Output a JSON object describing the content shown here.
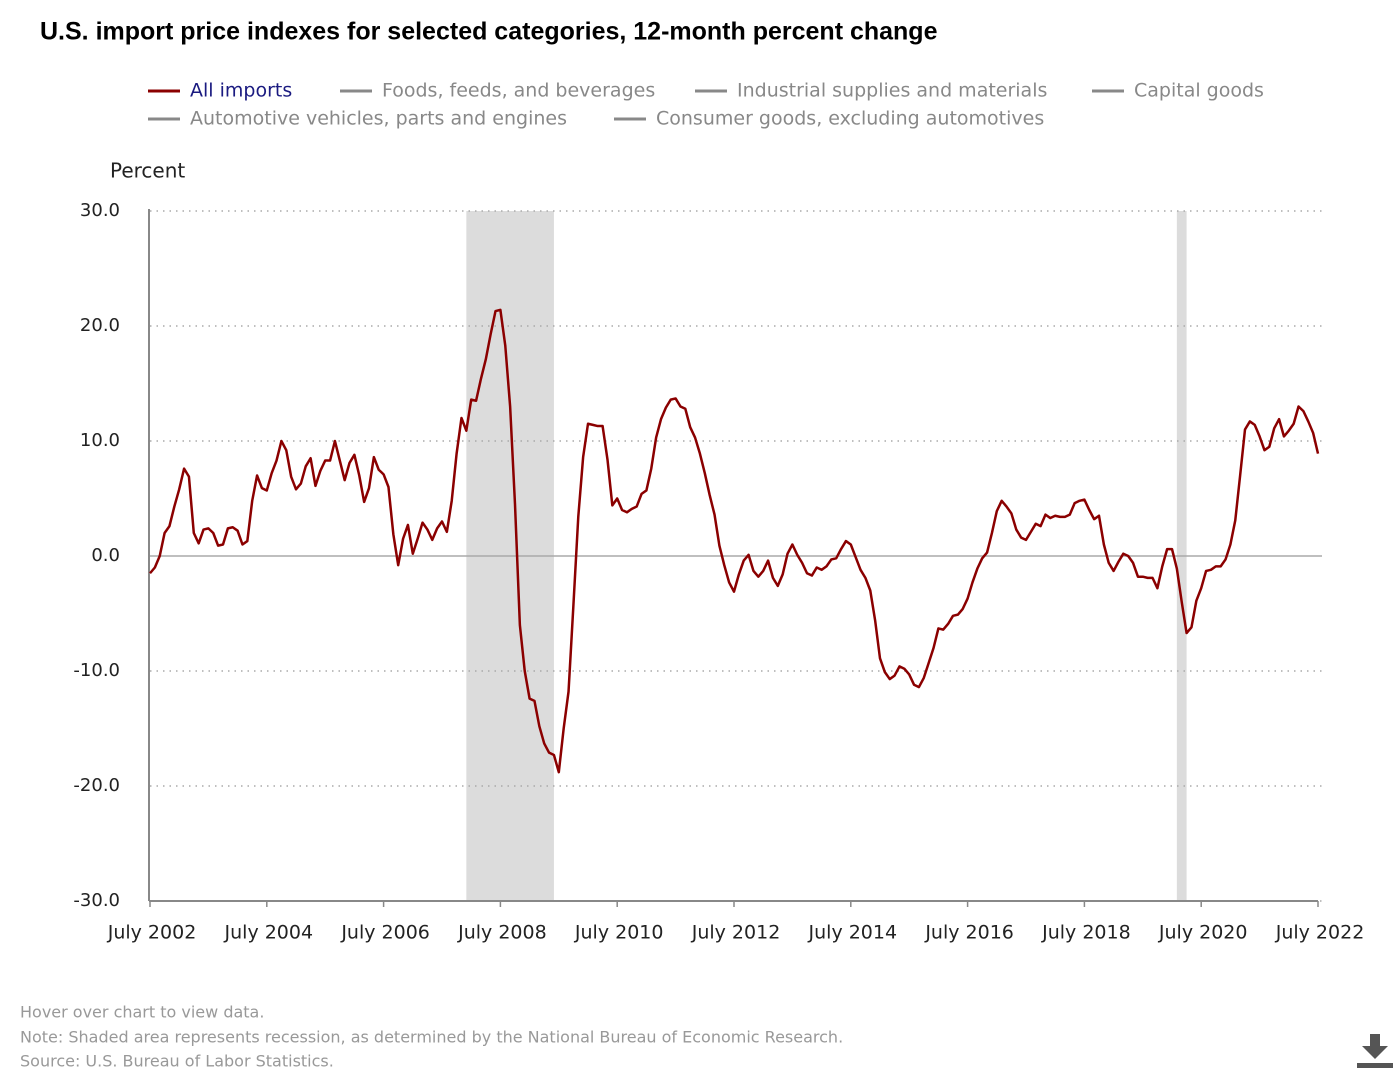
{
  "chart_data": {
    "type": "line",
    "title": "U.S. import price indexes for selected categories, 12-month percent change",
    "y_axis_label": "Percent",
    "categories": [
      "July 2002",
      null,
      null,
      null,
      null,
      null,
      null,
      null,
      null,
      null,
      null,
      null,
      null,
      null,
      null,
      null,
      null,
      null,
      null,
      null,
      null,
      null,
      null,
      null,
      "July 2004",
      null,
      null,
      null,
      null,
      null,
      null,
      null,
      null,
      null,
      null,
      null,
      null,
      null,
      null,
      null,
      null,
      null,
      null,
      null,
      null,
      null,
      null,
      null,
      "July 2006",
      null,
      null,
      null,
      null,
      null,
      null,
      null,
      null,
      null,
      null,
      null,
      null,
      null,
      null,
      null,
      null,
      null,
      null,
      null,
      null,
      null,
      null,
      null,
      "July 2008",
      null,
      null,
      null,
      null,
      null,
      null,
      null,
      null,
      null,
      null,
      null,
      null,
      null,
      null,
      null,
      null,
      null,
      null,
      null,
      null,
      null,
      null,
      null,
      "July 2010",
      null,
      null,
      null,
      null,
      null,
      null,
      null,
      null,
      null,
      null,
      null,
      null,
      null,
      null,
      null,
      null,
      null,
      null,
      null,
      null,
      null,
      null,
      null,
      "July 2012",
      null,
      null,
      null,
      null,
      null,
      null,
      null,
      null,
      null,
      null,
      null,
      null,
      null,
      null,
      null,
      null,
      null,
      null,
      null,
      null,
      null,
      null,
      null,
      "July 2014",
      null,
      null,
      null,
      null,
      null,
      null,
      null,
      null,
      null,
      null,
      null,
      null,
      null,
      null,
      null,
      null,
      null,
      null,
      null,
      null,
      null,
      null,
      null,
      "July 2016",
      null,
      null,
      null,
      null,
      null,
      null,
      null,
      null,
      null,
      null,
      null,
      null,
      null,
      null,
      null,
      null,
      null,
      null,
      null,
      null,
      null,
      null,
      null,
      "July 2018",
      null,
      null,
      null,
      null,
      null,
      null,
      null,
      null,
      null,
      null,
      null,
      null,
      null,
      null,
      null,
      null,
      null,
      null,
      null,
      null,
      null,
      null,
      null,
      "July 2020",
      null,
      null,
      null,
      null,
      null,
      null,
      null,
      null,
      null,
      null,
      null,
      null,
      null,
      null,
      null,
      null,
      null,
      null,
      null,
      null,
      null,
      null,
      null,
      "July 2022"
    ],
    "series": [
      {
        "name": "All imports",
        "color": "#8b0000",
        "visible": true,
        "values": [
          -1.5,
          -1.0,
          0.0,
          2.0,
          2.6,
          4.3,
          5.8,
          7.6,
          6.9,
          2.0,
          1.1,
          2.3,
          2.4,
          2.0,
          0.9,
          1.0,
          2.4,
          2.5,
          2.2,
          1.0,
          1.3,
          4.8,
          7.0,
          5.9,
          5.7,
          7.2,
          8.3,
          10.0,
          9.2,
          6.9,
          5.8,
          6.3,
          7.8,
          8.5,
          6.1,
          7.4,
          8.3,
          8.3,
          10.0,
          8.3,
          6.6,
          8.1,
          8.8,
          7.0,
          4.7,
          5.9,
          8.6,
          7.5,
          7.1,
          6.0,
          1.9,
          -0.8,
          1.5,
          2.7,
          0.2,
          1.5,
          2.9,
          2.3,
          1.4,
          2.4,
          3.0,
          2.1,
          4.8,
          8.9,
          12.0,
          10.9,
          13.6,
          13.5,
          15.4,
          17.1,
          19.3,
          21.3,
          21.4,
          18.3,
          13.0,
          4.5,
          -6.0,
          -10.0,
          -12.4,
          -12.6,
          -14.8,
          -16.3,
          -17.1,
          -17.3,
          -18.8,
          -15.0,
          -11.8,
          -4.3,
          3.4,
          8.6,
          11.5,
          11.4,
          11.3,
          11.3,
          8.4,
          4.4,
          5.0,
          4.0,
          3.8,
          4.1,
          4.3,
          5.4,
          5.7,
          7.6,
          10.3,
          11.9,
          12.9,
          13.6,
          13.7,
          13.0,
          12.8,
          11.2,
          10.3,
          8.9,
          7.2,
          5.3,
          3.6,
          0.9,
          -0.8,
          -2.3,
          -3.1,
          -1.6,
          -0.4,
          0.1,
          -1.3,
          -1.8,
          -1.3,
          -0.4,
          -1.9,
          -2.6,
          -1.6,
          0.2,
          1.0,
          0.1,
          -0.6,
          -1.5,
          -1.7,
          -1.0,
          -1.2,
          -0.9,
          -0.3,
          -0.2,
          0.6,
          1.3,
          1.0,
          -0.1,
          -1.2,
          -1.9,
          -3.0,
          -5.6,
          -8.9,
          -10.1,
          -10.7,
          -10.4,
          -9.6,
          -9.8,
          -10.3,
          -11.2,
          -11.4,
          -10.6,
          -9.3,
          -8.0,
          -6.3,
          -6.4,
          -5.9,
          -5.2,
          -5.1,
          -4.6,
          -3.7,
          -2.3,
          -1.1,
          -0.2,
          0.3,
          2.0,
          3.9,
          4.8,
          4.3,
          3.7,
          2.3,
          1.6,
          1.4,
          2.1,
          2.8,
          2.6,
          3.6,
          3.3,
          3.5,
          3.4,
          3.4,
          3.6,
          4.6,
          4.8,
          4.9,
          4.0,
          3.2,
          3.5,
          1.0,
          -0.6,
          -1.3,
          -0.5,
          0.2,
          0.0,
          -0.6,
          -1.8,
          -1.8,
          -1.9,
          -1.9,
          -2.8,
          -0.9,
          0.6,
          0.6,
          -1.1,
          -4.0,
          -6.7,
          -6.2,
          -3.9,
          -2.8,
          -1.3,
          -1.2,
          -0.9,
          -0.9,
          -0.3,
          1.0,
          3.1,
          7.0,
          11.0,
          11.7,
          11.4,
          10.4,
          9.2,
          9.5,
          11.1,
          11.9,
          10.4,
          10.9,
          11.5,
          13.0,
          12.6,
          11.7,
          10.7,
          8.9
        ]
      },
      {
        "name": "Foods, feeds, and beverages",
        "color": "#888888",
        "visible": false
      },
      {
        "name": "Industrial supplies and materials",
        "color": "#888888",
        "visible": false
      },
      {
        "name": "Capital goods",
        "color": "#888888",
        "visible": false
      },
      {
        "name": "Automotive vehicles, parts and engines",
        "color": "#888888",
        "visible": false
      },
      {
        "name": "Consumer goods, excluding automotives",
        "color": "#888888",
        "visible": false
      }
    ],
    "ylim": [
      -30,
      30
    ],
    "yticks": [
      {
        "value": -30,
        "label": "-30.0"
      },
      {
        "value": -20,
        "label": "-20.0"
      },
      {
        "value": -10,
        "label": "-10.0"
      },
      {
        "value": 0,
        "label": "0.0"
      },
      {
        "value": 10,
        "label": "10.0"
      },
      {
        "value": 20,
        "label": "20.0"
      },
      {
        "value": 30,
        "label": "30.0"
      }
    ],
    "grid": true,
    "recessions": [
      {
        "start_index": 65,
        "end_index": 83
      },
      {
        "start_index": 211,
        "end_index": 213
      }
    ],
    "notes": [
      "Hover over chart to view data.",
      "Note: Shaded area represents recession, as determined by the National Bureau of Economic Research.",
      "Source: U.S. Bureau of Labor Statistics."
    ]
  }
}
